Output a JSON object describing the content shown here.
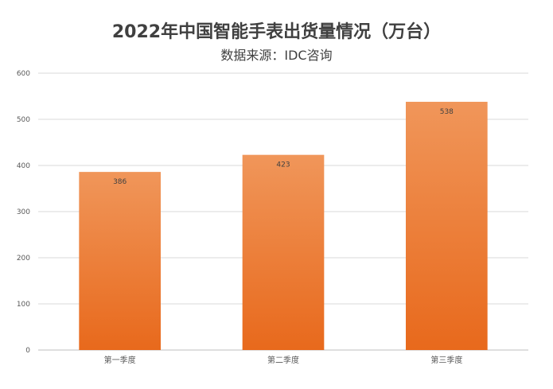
{
  "chart_data": {
    "type": "bar",
    "title": "2022年中国智能手表出货量情况（万台）",
    "subtitle": "数据来源：IDC咨询",
    "categories": [
      "第一季度",
      "第二季度",
      "第三季度"
    ],
    "values": [
      386,
      423,
      538
    ],
    "data_labels": [
      "386",
      "423",
      "538"
    ],
    "ylim": [
      0,
      600
    ],
    "yticks": [
      0,
      100,
      200,
      300,
      400,
      500,
      600
    ],
    "grid": true,
    "legend": "none",
    "colors": {
      "bar_top": "#f0965a",
      "bar_bottom": "#e8691c",
      "grid": "#d9d9d9",
      "axis": "#bfbfbf"
    }
  }
}
